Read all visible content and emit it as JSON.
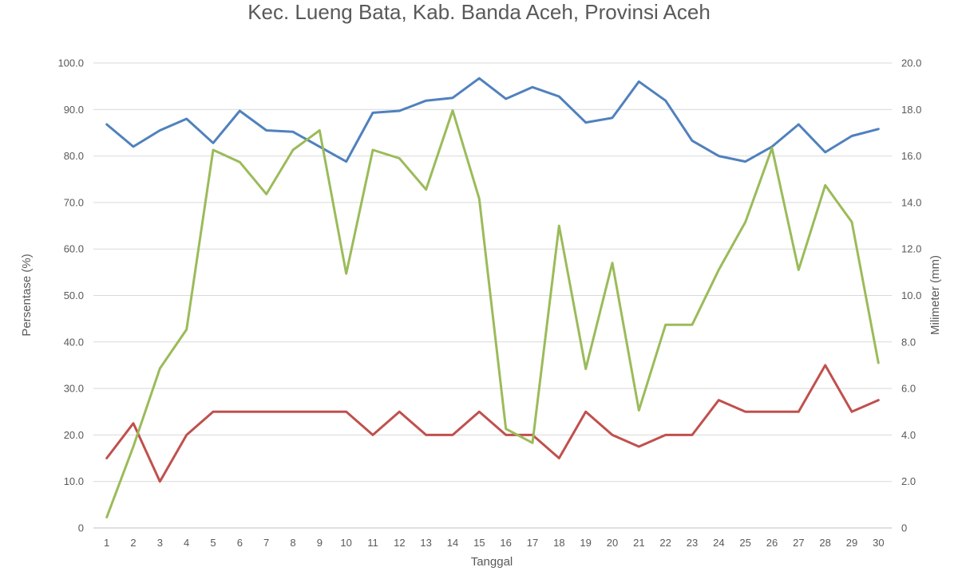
{
  "chart_data": {
    "type": "line",
    "title": "Kec. Lueng Bata, Kab. Banda Aceh, Provinsi  Aceh",
    "xlabel": "Tanggal",
    "ylabel": "Persentase (%)",
    "y2label": "Milimeter (mm)",
    "x": [
      1,
      2,
      3,
      4,
      5,
      6,
      7,
      8,
      9,
      10,
      11,
      12,
      13,
      14,
      15,
      16,
      17,
      18,
      19,
      20,
      21,
      22,
      23,
      24,
      25,
      26,
      27,
      28,
      29,
      30
    ],
    "ylim": [
      0,
      100
    ],
    "y2lim": [
      0,
      20
    ],
    "yticks": [
      "0",
      "10.0",
      "20.0",
      "30.0",
      "40.0",
      "50.0",
      "60.0",
      "70.0",
      "80.0",
      "90.0",
      "100.0"
    ],
    "y2ticks": [
      "0",
      "2.0",
      "4.0",
      "6.0",
      "8.0",
      "10.0",
      "12.0",
      "14.0",
      "16.0",
      "18.0",
      "20.0"
    ],
    "grid": true,
    "series": [
      {
        "color": "#4f81bd",
        "axis": "left",
        "values": [
          86.8,
          82.0,
          85.5,
          88.0,
          82.8,
          89.7,
          85.5,
          85.2,
          82.0,
          78.8,
          89.3,
          89.7,
          91.9,
          92.5,
          96.7,
          92.3,
          94.8,
          92.8,
          87.2,
          88.2,
          96.0,
          91.9,
          83.3,
          80.0,
          78.8,
          82.0,
          86.8,
          80.8,
          84.3,
          85.8
        ]
      },
      {
        "color": "#c0504d",
        "axis": "left",
        "values": [
          15.0,
          22.5,
          10.0,
          20.0,
          25.0,
          25.0,
          25.0,
          25.0,
          25.0,
          25.0,
          20.0,
          25.0,
          20.0,
          20.0,
          25.0,
          20.0,
          20.0,
          15.0,
          25.0,
          20.0,
          17.5,
          20.0,
          20.0,
          27.5,
          25.0,
          25.0,
          25.0,
          35.0,
          25.0,
          27.5
        ]
      },
      {
        "color": "#9bbb59",
        "axis": "left",
        "values": [
          2.3,
          17.5,
          34.3,
          42.7,
          81.3,
          78.7,
          71.8,
          81.3,
          85.5,
          54.7,
          81.3,
          79.5,
          72.8,
          89.8,
          70.8,
          21.3,
          18.3,
          65.0,
          34.2,
          57.0,
          25.3,
          43.7,
          43.7,
          55.5,
          65.8,
          81.7,
          55.5,
          73.7,
          65.8,
          35.5
        ]
      }
    ]
  }
}
